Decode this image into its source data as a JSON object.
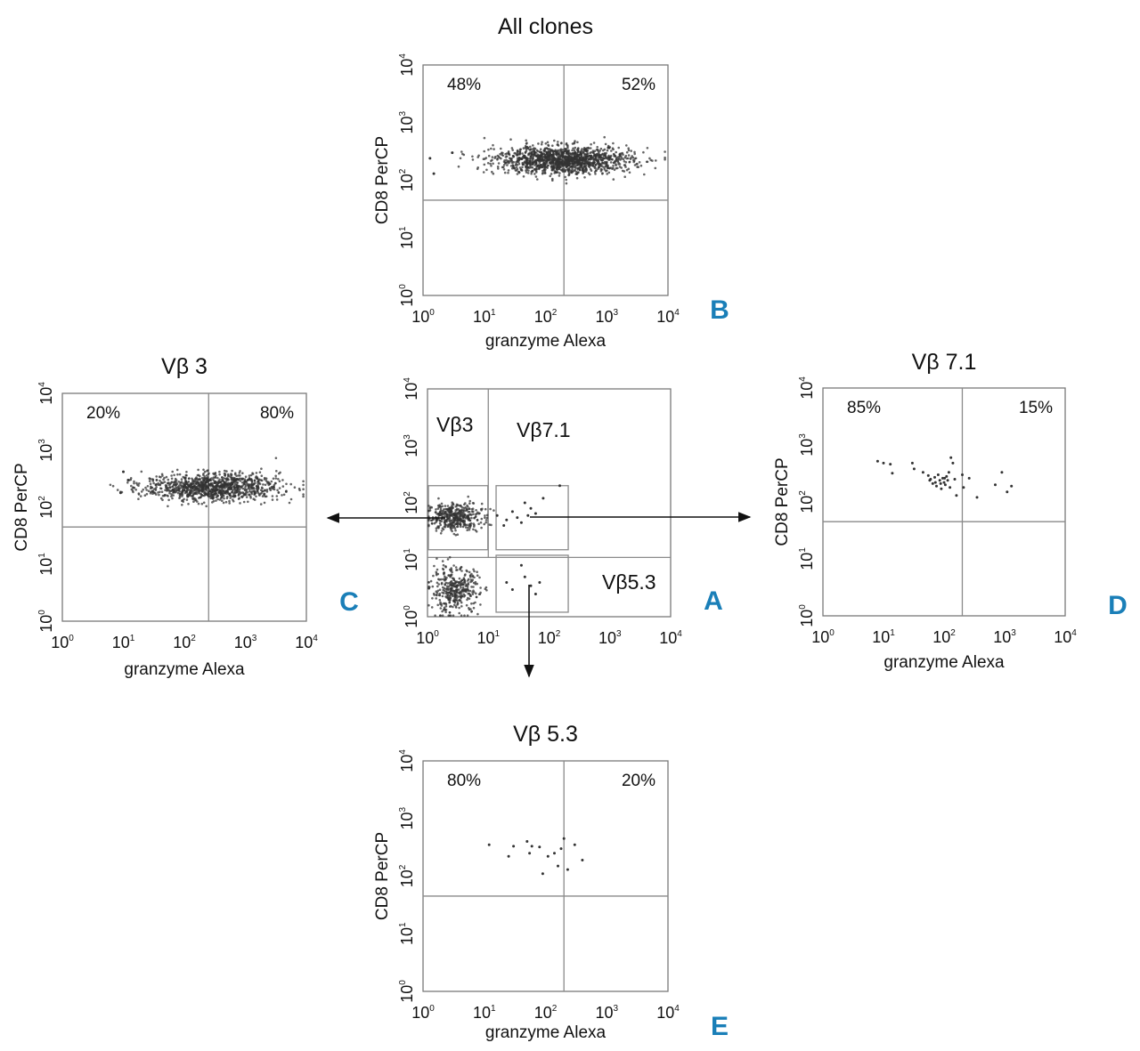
{
  "figure": {
    "arrow_color": "#111111",
    "panel_letter_color": "#1a7fb8",
    "point_color": "#333333"
  },
  "chart_data": [
    {
      "id": "A",
      "type": "scatter",
      "panel_letter": "A",
      "title": "",
      "xlabel": "",
      "ylabel": "",
      "scale": "log",
      "xlim": [
        1,
        10000
      ],
      "ylim": [
        1,
        10000
      ],
      "x_ticks": [
        {
          "base": "10",
          "exp": "0"
        },
        {
          "base": "10",
          "exp": "1"
        },
        {
          "base": "10",
          "exp": "2"
        },
        {
          "base": "10",
          "exp": "3"
        },
        {
          "base": "10",
          "exp": "4"
        }
      ],
      "y_ticks": [
        {
          "base": "10",
          "exp": "0"
        },
        {
          "base": "10",
          "exp": "1"
        },
        {
          "base": "10",
          "exp": "2"
        },
        {
          "base": "10",
          "exp": "3"
        },
        {
          "base": "10",
          "exp": "4"
        }
      ],
      "gate_labels": [
        "Vβ3",
        "Vβ7.1",
        "Vβ5.3"
      ],
      "gates": [
        {
          "name": "Vβ3",
          "x": [
            1,
            9.5
          ],
          "y": [
            15,
            200
          ]
        },
        {
          "name": "Vβ7.1",
          "x": [
            13,
            200
          ],
          "y": [
            15,
            200
          ]
        },
        {
          "name": "Vβ5.3",
          "x": [
            13,
            200
          ],
          "y": [
            1.2,
            12
          ]
        }
      ],
      "dividers": {
        "x": 10,
        "y": 11
      },
      "clusters": [
        {
          "n": 420,
          "x_log_mean": 0.45,
          "y_log_mean": 1.75,
          "x_log_sd": 0.22,
          "y_log_sd": 0.12
        },
        {
          "n": 380,
          "x_log_mean": 0.45,
          "y_log_mean": 0.45,
          "x_log_sd": 0.2,
          "y_log_sd": 0.2
        }
      ],
      "points": [
        {
          "x": 14,
          "y": 60
        },
        {
          "x": 20,
          "y": 50
        },
        {
          "x": 25,
          "y": 70
        },
        {
          "x": 30,
          "y": 55
        },
        {
          "x": 40,
          "y": 100
        },
        {
          "x": 50,
          "y": 80
        },
        {
          "x": 35,
          "y": 45
        },
        {
          "x": 60,
          "y": 65
        },
        {
          "x": 80,
          "y": 120
        },
        {
          "x": 150,
          "y": 200
        },
        {
          "x": 18,
          "y": 40
        },
        {
          "x": 45,
          "y": 60
        },
        {
          "x": 20,
          "y": 4
        },
        {
          "x": 25,
          "y": 3
        },
        {
          "x": 40,
          "y": 5
        },
        {
          "x": 50,
          "y": 3.5
        },
        {
          "x": 60,
          "y": 2.5
        },
        {
          "x": 35,
          "y": 8
        },
        {
          "x": 70,
          "y": 4
        }
      ]
    },
    {
      "id": "B",
      "type": "scatter",
      "panel_letter": "B",
      "title": "All clones",
      "xlabel": "granzyme Alexa",
      "ylabel": "CD8 PerCP",
      "scale": "log",
      "xlim": [
        1,
        10000
      ],
      "ylim": [
        1,
        10000
      ],
      "x_ticks": [
        {
          "base": "10",
          "exp": "0"
        },
        {
          "base": "10",
          "exp": "1"
        },
        {
          "base": "10",
          "exp": "2"
        },
        {
          "base": "10",
          "exp": "3"
        },
        {
          "base": "10",
          "exp": "4"
        }
      ],
      "y_ticks": [
        {
          "base": "10",
          "exp": "0"
        },
        {
          "base": "10",
          "exp": "1"
        },
        {
          "base": "10",
          "exp": "2"
        },
        {
          "base": "10",
          "exp": "3"
        },
        {
          "base": "10",
          "exp": "4"
        }
      ],
      "quadrant": {
        "x": 200,
        "y": 45
      },
      "quadrant_labels": {
        "left": "48%",
        "right": "52%"
      },
      "clusters": [
        {
          "n": 1400,
          "x_log_mean": 2.3,
          "y_log_mean": 2.35,
          "x_log_sd": 0.55,
          "y_log_sd": 0.12
        }
      ],
      "points": [
        {
          "x": 1.3,
          "y": 240
        },
        {
          "x": 1.5,
          "y": 130
        },
        {
          "x": 3,
          "y": 300
        }
      ]
    },
    {
      "id": "C",
      "type": "scatter",
      "panel_letter": "C",
      "title": "Vβ 3",
      "xlabel": "granzyme Alexa",
      "ylabel": "CD8 PerCP",
      "scale": "log",
      "xlim": [
        1,
        10000
      ],
      "ylim": [
        1,
        10000
      ],
      "x_ticks": [
        {
          "base": "10",
          "exp": "0"
        },
        {
          "base": "10",
          "exp": "1"
        },
        {
          "base": "10",
          "exp": "2"
        },
        {
          "base": "10",
          "exp": "3"
        },
        {
          "base": "10",
          "exp": "4"
        }
      ],
      "y_ticks": [
        {
          "base": "10",
          "exp": "0"
        },
        {
          "base": "10",
          "exp": "1"
        },
        {
          "base": "10",
          "exp": "2"
        },
        {
          "base": "10",
          "exp": "3"
        },
        {
          "base": "10",
          "exp": "4"
        }
      ],
      "quadrant": {
        "x": 250,
        "y": 45
      },
      "quadrant_labels": {
        "left": "20%",
        "right": "80%"
      },
      "clusters": [
        {
          "n": 1100,
          "x_log_mean": 2.45,
          "y_log_mean": 2.35,
          "x_log_sd": 0.55,
          "y_log_sd": 0.12
        }
      ],
      "points": [
        {
          "x": 10,
          "y": 420
        },
        {
          "x": 9,
          "y": 180
        },
        {
          "x": 12,
          "y": 300
        }
      ]
    },
    {
      "id": "D",
      "type": "scatter",
      "panel_letter": "D",
      "title": "Vβ 7.1",
      "xlabel": "granzyme Alexa",
      "ylabel": "CD8 PerCP",
      "scale": "log",
      "xlim": [
        1,
        10000
      ],
      "ylim": [
        1,
        10000
      ],
      "x_ticks": [
        {
          "base": "10",
          "exp": "0"
        },
        {
          "base": "10",
          "exp": "1"
        },
        {
          "base": "10",
          "exp": "2"
        },
        {
          "base": "10",
          "exp": "3"
        },
        {
          "base": "10",
          "exp": "4"
        }
      ],
      "y_ticks": [
        {
          "base": "10",
          "exp": "0"
        },
        {
          "base": "10",
          "exp": "1"
        },
        {
          "base": "10",
          "exp": "2"
        },
        {
          "base": "10",
          "exp": "3"
        },
        {
          "base": "10",
          "exp": "4"
        }
      ],
      "quadrant": {
        "x": 200,
        "y": 45
      },
      "quadrant_labels": {
        "left": "85%",
        "right": "15%"
      },
      "points": [
        {
          "x": 8,
          "y": 520
        },
        {
          "x": 10,
          "y": 480
        },
        {
          "x": 13,
          "y": 460
        },
        {
          "x": 14,
          "y": 320
        },
        {
          "x": 30,
          "y": 480
        },
        {
          "x": 32,
          "y": 380
        },
        {
          "x": 45,
          "y": 330
        },
        {
          "x": 55,
          "y": 290
        },
        {
          "x": 60,
          "y": 250
        },
        {
          "x": 65,
          "y": 210
        },
        {
          "x": 70,
          "y": 270
        },
        {
          "x": 75,
          "y": 190
        },
        {
          "x": 80,
          "y": 300
        },
        {
          "x": 85,
          "y": 240
        },
        {
          "x": 90,
          "y": 170
        },
        {
          "x": 95,
          "y": 260
        },
        {
          "x": 100,
          "y": 220
        },
        {
          "x": 105,
          "y": 200
        },
        {
          "x": 110,
          "y": 280
        },
        {
          "x": 115,
          "y": 240
        },
        {
          "x": 120,
          "y": 330
        },
        {
          "x": 125,
          "y": 180
        },
        {
          "x": 130,
          "y": 600
        },
        {
          "x": 140,
          "y": 480
        },
        {
          "x": 150,
          "y": 250
        },
        {
          "x": 160,
          "y": 130
        },
        {
          "x": 200,
          "y": 300
        },
        {
          "x": 210,
          "y": 180
        },
        {
          "x": 260,
          "y": 260
        },
        {
          "x": 350,
          "y": 120
        },
        {
          "x": 700,
          "y": 200
        },
        {
          "x": 900,
          "y": 330
        },
        {
          "x": 1100,
          "y": 150
        },
        {
          "x": 1300,
          "y": 190
        },
        {
          "x": 72,
          "y": 220
        },
        {
          "x": 88,
          "y": 210
        },
        {
          "x": 58,
          "y": 240
        },
        {
          "x": 102,
          "y": 260
        }
      ]
    },
    {
      "id": "E",
      "type": "scatter",
      "panel_letter": "E",
      "title": "Vβ 5.3",
      "xlabel": "granzyme Alexa",
      "ylabel": "CD8 PerCP",
      "scale": "log",
      "xlim": [
        1,
        10000
      ],
      "ylim": [
        1,
        10000
      ],
      "x_ticks": [
        {
          "base": "10",
          "exp": "0"
        },
        {
          "base": "10",
          "exp": "1"
        },
        {
          "base": "10",
          "exp": "2"
        },
        {
          "base": "10",
          "exp": "3"
        },
        {
          "base": "10",
          "exp": "4"
        }
      ],
      "y_ticks": [
        {
          "base": "10",
          "exp": "0"
        },
        {
          "base": "10",
          "exp": "1"
        },
        {
          "base": "10",
          "exp": "2"
        },
        {
          "base": "10",
          "exp": "3"
        },
        {
          "base": "10",
          "exp": "4"
        }
      ],
      "quadrant": {
        "x": 200,
        "y": 45
      },
      "quadrant_labels": {
        "left": "80%",
        "right": "20%"
      },
      "points": [
        {
          "x": 12,
          "y": 350
        },
        {
          "x": 25,
          "y": 220
        },
        {
          "x": 30,
          "y": 330
        },
        {
          "x": 50,
          "y": 400
        },
        {
          "x": 55,
          "y": 250
        },
        {
          "x": 60,
          "y": 330
        },
        {
          "x": 80,
          "y": 320
        },
        {
          "x": 90,
          "y": 110
        },
        {
          "x": 110,
          "y": 220
        },
        {
          "x": 140,
          "y": 250
        },
        {
          "x": 160,
          "y": 150
        },
        {
          "x": 180,
          "y": 300
        },
        {
          "x": 200,
          "y": 450
        },
        {
          "x": 230,
          "y": 130
        },
        {
          "x": 300,
          "y": 350
        },
        {
          "x": 400,
          "y": 190
        }
      ]
    }
  ]
}
